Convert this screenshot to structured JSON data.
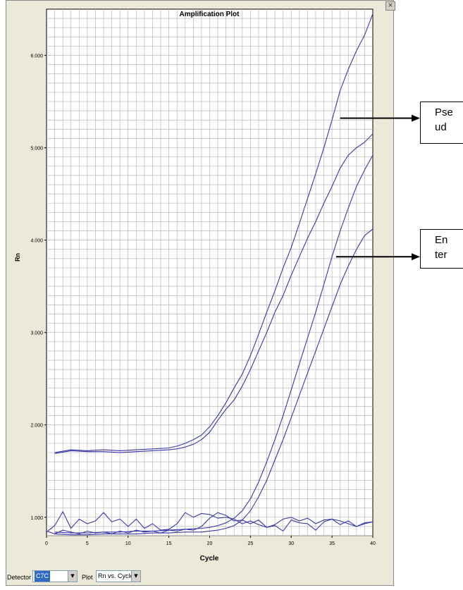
{
  "window": {
    "close_glyph": "×"
  },
  "chart_data": {
    "type": "line",
    "title": "Amplification Plot",
    "xlabel": "Cycle",
    "ylabel": "Rn",
    "xlim": [
      0,
      40
    ],
    "ylim": [
      0.8,
      6.5
    ],
    "grid": true,
    "x_ticks": [
      0,
      5,
      10,
      15,
      20,
      25,
      30,
      35,
      40
    ],
    "y_ticks": [
      1.0,
      2.0,
      3.0,
      4.0,
      5.0,
      6.0
    ],
    "y_tick_labels": [
      "1.000",
      "2.000",
      "3.000",
      "4.000",
      "5.000",
      "6.000"
    ],
    "line_color": "#3a38a8",
    "series": [
      {
        "x": [
          1,
          3,
          5,
          7,
          9,
          11,
          13,
          15,
          16,
          17,
          18,
          19,
          20,
          21,
          22,
          23,
          24,
          25,
          26,
          27,
          28,
          29,
          30,
          31,
          32,
          33,
          34,
          35,
          36,
          37,
          38,
          39,
          40
        ],
        "y": [
          1.7,
          1.73,
          1.72,
          1.73,
          1.72,
          1.73,
          1.74,
          1.75,
          1.77,
          1.8,
          1.84,
          1.89,
          1.98,
          2.1,
          2.24,
          2.4,
          2.55,
          2.75,
          2.98,
          3.22,
          3.45,
          3.7,
          3.92,
          4.18,
          4.45,
          4.72,
          5.0,
          5.3,
          5.62,
          5.85,
          6.05,
          6.22,
          6.45
        ]
      },
      {
        "x": [
          1,
          3,
          5,
          7,
          9,
          11,
          13,
          15,
          16,
          17,
          18,
          19,
          20,
          21,
          22,
          23,
          24,
          25,
          26,
          27,
          28,
          29,
          30,
          31,
          32,
          33,
          34,
          35,
          36,
          37,
          38,
          39,
          40
        ],
        "y": [
          1.69,
          1.72,
          1.71,
          1.71,
          1.7,
          1.71,
          1.72,
          1.73,
          1.74,
          1.76,
          1.79,
          1.84,
          1.92,
          2.05,
          2.17,
          2.27,
          2.42,
          2.6,
          2.8,
          3.0,
          3.22,
          3.4,
          3.62,
          3.82,
          4.02,
          4.2,
          4.4,
          4.58,
          4.78,
          4.92,
          5.0,
          5.06,
          5.15
        ]
      },
      {
        "x": [
          1,
          3,
          5,
          7,
          9,
          11,
          13,
          15,
          17,
          19,
          20,
          21,
          22,
          23,
          24,
          25,
          26,
          27,
          28,
          29,
          30,
          31,
          32,
          33,
          34,
          35,
          36,
          37,
          38,
          39,
          40
        ],
        "y": [
          0.84,
          0.83,
          0.83,
          0.84,
          0.84,
          0.85,
          0.85,
          0.86,
          0.87,
          0.88,
          0.89,
          0.91,
          0.94,
          0.99,
          1.07,
          1.2,
          1.38,
          1.6,
          1.84,
          2.1,
          2.38,
          2.66,
          2.94,
          3.22,
          3.52,
          3.82,
          4.1,
          4.35,
          4.58,
          4.76,
          4.92
        ]
      },
      {
        "x": [
          1,
          3,
          5,
          7,
          9,
          11,
          13,
          15,
          17,
          19,
          20,
          21,
          22,
          23,
          24,
          25,
          26,
          27,
          28,
          29,
          30,
          31,
          32,
          33,
          34,
          35,
          36,
          37,
          38,
          39,
          40
        ],
        "y": [
          0.82,
          0.81,
          0.81,
          0.82,
          0.82,
          0.82,
          0.83,
          0.83,
          0.84,
          0.84,
          0.85,
          0.86,
          0.88,
          0.91,
          0.97,
          1.07,
          1.22,
          1.4,
          1.62,
          1.84,
          2.08,
          2.32,
          2.56,
          2.8,
          3.04,
          3.28,
          3.52,
          3.72,
          3.9,
          4.05,
          4.12
        ]
      },
      {
        "x": [
          0,
          1,
          2,
          3,
          4,
          5,
          6,
          7,
          8,
          9,
          10,
          11,
          12,
          13,
          14,
          15,
          16,
          17,
          18,
          19,
          20,
          21,
          22,
          23,
          24,
          25,
          26,
          27,
          28,
          29,
          30,
          31,
          32,
          33,
          34,
          35,
          36,
          37,
          38,
          39,
          40
        ],
        "y": [
          0.84,
          0.91,
          1.06,
          0.88,
          0.98,
          0.93,
          0.96,
          1.05,
          0.95,
          0.98,
          0.9,
          0.98,
          0.88,
          0.93,
          0.86,
          0.87,
          0.93,
          1.05,
          1.0,
          1.04,
          1.03,
          0.99,
          1.0,
          0.98,
          0.93,
          0.96,
          0.92,
          0.89,
          0.92,
          0.98,
          1.0,
          0.96,
          0.99,
          0.93,
          0.97,
          0.98,
          0.96,
          0.93,
          0.9,
          0.94,
          0.95
        ]
      },
      {
        "x": [
          0,
          1,
          2,
          3,
          4,
          5,
          6,
          7,
          8,
          9,
          10,
          11,
          12,
          13,
          14,
          15,
          16,
          17,
          18,
          19,
          20,
          21,
          22,
          23,
          24,
          25,
          26,
          27,
          28,
          29,
          30,
          31,
          32,
          33,
          34,
          35,
          36,
          37,
          38,
          39,
          40
        ],
        "y": [
          0.85,
          0.82,
          0.86,
          0.84,
          0.82,
          0.85,
          0.83,
          0.84,
          0.82,
          0.85,
          0.83,
          0.86,
          0.84,
          0.85,
          0.83,
          0.86,
          0.85,
          0.87,
          0.86,
          0.9,
          0.99,
          1.05,
          1.02,
          0.96,
          0.97,
          0.93,
          0.97,
          0.89,
          0.91,
          0.85,
          0.97,
          0.94,
          0.93,
          0.86,
          0.95,
          0.98,
          0.92,
          0.96,
          0.9,
          0.93,
          0.95
        ]
      }
    ],
    "annotations": [
      {
        "text": "Pse\nud",
        "arrow_from": [
          36,
          5.32
        ]
      },
      {
        "text": "En\nter",
        "arrow_from": [
          35.5,
          3.82
        ]
      }
    ]
  },
  "toolbar": {
    "detector_label": "Detector",
    "detector_value": "C7C",
    "plot_label": "Plot",
    "plot_value": "Rn vs. Cycle",
    "dropdown_glyph": "▼"
  }
}
